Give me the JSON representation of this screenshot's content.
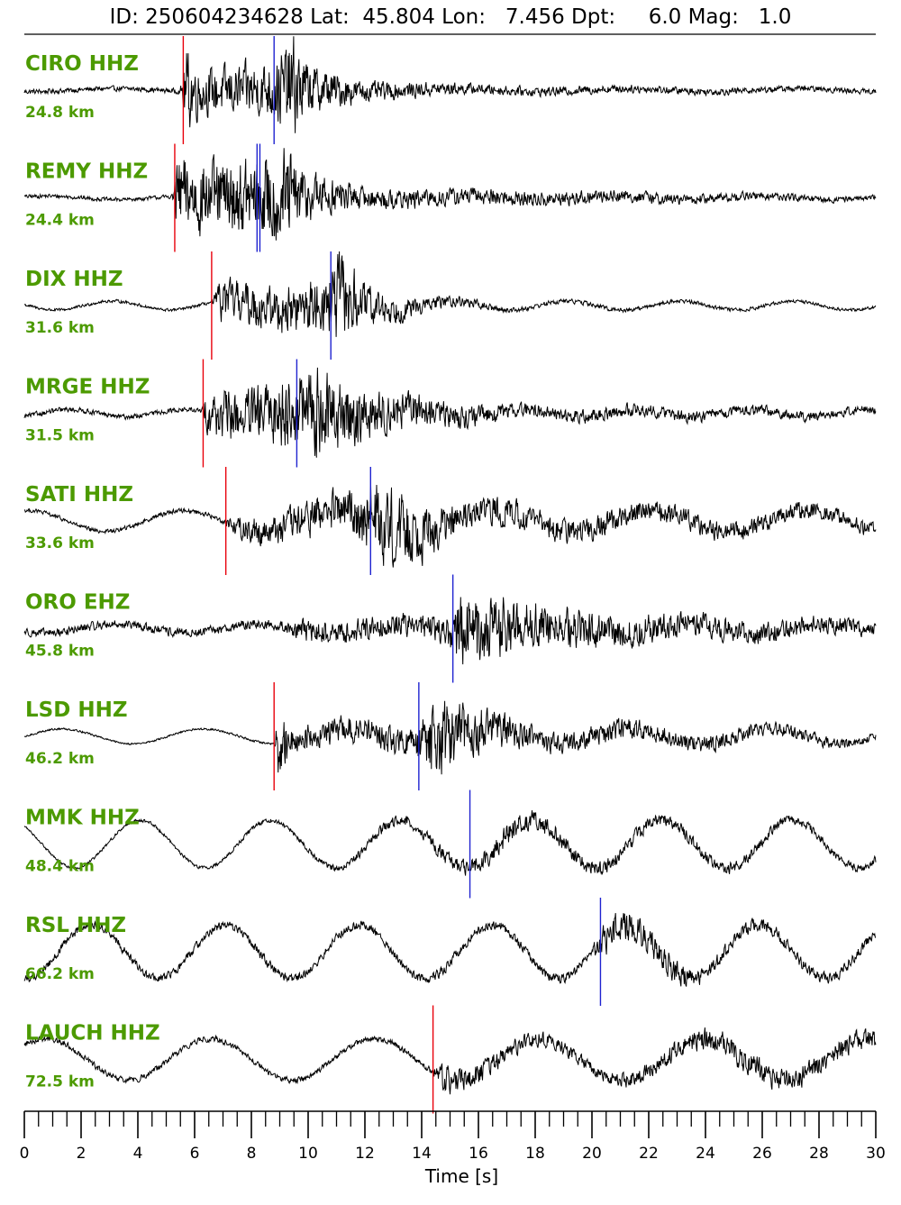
{
  "title": "ID: 250604234628 Lat:  45.804 Lon:   7.456 Dpt:     6.0 Mag:   1.0",
  "chart_data": {
    "type": "line",
    "xlabel": "Time [s]",
    "xlim": [
      0,
      30
    ],
    "x_ticks": [
      0,
      2,
      4,
      6,
      8,
      10,
      12,
      14,
      16,
      18,
      20,
      22,
      24,
      26,
      28,
      30
    ],
    "minor_tick_step": 0.5,
    "colors": {
      "trace": "#000000",
      "p_pick": "#e8000b",
      "s_pick": "#1f23d0",
      "label": "#4c9a00"
    },
    "series": [
      {
        "name": "CIRO HHZ",
        "distance": "24.8 km",
        "p_picks": [
          5.6
        ],
        "s_picks": [
          8.8
        ],
        "envelope": [
          [
            0,
            0.05
          ],
          [
            5.5,
            0.05
          ],
          [
            5.7,
            0.9
          ],
          [
            6.2,
            0.45
          ],
          [
            8.5,
            0.55
          ],
          [
            9.5,
            1.0
          ],
          [
            10,
            0.5
          ],
          [
            12,
            0.2
          ],
          [
            16,
            0.1
          ],
          [
            30,
            0.05
          ]
        ],
        "long_period": {
          "amp": 0.05,
          "period": 6.0
        }
      },
      {
        "name": "REMY HHZ",
        "distance": "24.4 km",
        "p_picks": [
          5.3
        ],
        "s_picks": [
          8.2,
          8.3
        ],
        "envelope": [
          [
            0,
            0.04
          ],
          [
            5.2,
            0.04
          ],
          [
            5.4,
            0.8
          ],
          [
            7,
            0.7
          ],
          [
            8.2,
            0.8
          ],
          [
            9.2,
            1.0
          ],
          [
            10,
            0.5
          ],
          [
            12,
            0.2
          ],
          [
            30,
            0.05
          ]
        ],
        "long_period": {
          "amp": 0.06,
          "period": 5.0
        }
      },
      {
        "name": "DIX HHZ",
        "distance": "31.6 km",
        "p_picks": [
          6.6
        ],
        "s_picks": [
          10.8
        ],
        "envelope": [
          [
            0,
            0.03
          ],
          [
            6.6,
            0.03
          ],
          [
            6.9,
            0.4
          ],
          [
            10.5,
            0.5
          ],
          [
            11.1,
            1.0
          ],
          [
            12,
            0.4
          ],
          [
            14,
            0.15
          ],
          [
            17,
            0.05
          ],
          [
            30,
            0.03
          ]
        ],
        "long_period": {
          "amp": 0.15,
          "period": 4.0
        }
      },
      {
        "name": "MRGE HHZ",
        "distance": "31.5 km",
        "p_picks": [
          6.3
        ],
        "s_picks": [
          9.6
        ],
        "envelope": [
          [
            0,
            0.05
          ],
          [
            6.2,
            0.05
          ],
          [
            6.5,
            0.45
          ],
          [
            8,
            0.55
          ],
          [
            9.5,
            0.75
          ],
          [
            10.3,
            0.9
          ],
          [
            12,
            0.5
          ],
          [
            14,
            0.3
          ],
          [
            17,
            0.15
          ],
          [
            30,
            0.08
          ]
        ],
        "long_period": {
          "amp": 0.12,
          "period": 4.0
        }
      },
      {
        "name": "SATI HHZ",
        "distance": "33.6 km",
        "p_picks": [
          7.1
        ],
        "s_picks": [
          12.2
        ],
        "envelope": [
          [
            0,
            0.04
          ],
          [
            7,
            0.05
          ],
          [
            7.6,
            0.25
          ],
          [
            11.5,
            0.45
          ],
          [
            12.5,
            0.8
          ],
          [
            13.5,
            0.7
          ],
          [
            15,
            0.35
          ],
          [
            18,
            0.25
          ],
          [
            30,
            0.15
          ]
        ],
        "long_period": {
          "amp": 0.35,
          "period": 5.5
        }
      },
      {
        "name": "ORO EHZ",
        "distance": "45.8 km",
        "p_picks": [],
        "s_picks": [
          15.1
        ],
        "envelope": [
          [
            0,
            0.08
          ],
          [
            9,
            0.1
          ],
          [
            9.5,
            0.2
          ],
          [
            14.8,
            0.25
          ],
          [
            15.5,
            0.9
          ],
          [
            16.5,
            0.7
          ],
          [
            18,
            0.45
          ],
          [
            21,
            0.3
          ],
          [
            30,
            0.15
          ]
        ],
        "long_period": {
          "amp": 0.15,
          "period": 5.0
        }
      },
      {
        "name": "LSD HHZ",
        "distance": "46.2 km",
        "p_picks": [
          8.8
        ],
        "s_picks": [
          13.9
        ],
        "envelope": [
          [
            0,
            0.02
          ],
          [
            8.8,
            0.02
          ],
          [
            8.95,
            0.7
          ],
          [
            9.5,
            0.25
          ],
          [
            13.8,
            0.3
          ],
          [
            14.5,
            1.0
          ],
          [
            15.5,
            0.5
          ],
          [
            18,
            0.25
          ],
          [
            30,
            0.08
          ]
        ],
        "long_period": {
          "amp": 0.25,
          "period": 5.0
        }
      },
      {
        "name": "MMK HHZ",
        "distance": "48.4 km",
        "p_picks": [],
        "s_picks": [
          15.7
        ],
        "envelope": [
          [
            0,
            0.02
          ],
          [
            10,
            0.05
          ],
          [
            15,
            0.15
          ],
          [
            17,
            0.22
          ],
          [
            20,
            0.15
          ],
          [
            30,
            0.08
          ]
        ],
        "long_period": {
          "amp": 0.8,
          "period": 4.6
        }
      },
      {
        "name": "RSL HHZ",
        "distance": "66.2 km",
        "p_picks": [],
        "s_picks": [
          20.3
        ],
        "envelope": [
          [
            0,
            0.08
          ],
          [
            20,
            0.1
          ],
          [
            20.5,
            0.35
          ],
          [
            22,
            0.3
          ],
          [
            24,
            0.15
          ],
          [
            30,
            0.1
          ]
        ],
        "long_period": {
          "amp": 0.9,
          "period": 4.7
        }
      },
      {
        "name": "LAUCH HHZ",
        "distance": "72.5 km",
        "p_picks": [
          14.4
        ],
        "s_picks": [],
        "envelope": [
          [
            0,
            0.06
          ],
          [
            14.4,
            0.06
          ],
          [
            14.6,
            0.3
          ],
          [
            16,
            0.2
          ],
          [
            20,
            0.12
          ],
          [
            25,
            0.25
          ],
          [
            30,
            0.2
          ]
        ],
        "long_period": {
          "amp": 0.7,
          "period": 5.8
        }
      }
    ]
  }
}
